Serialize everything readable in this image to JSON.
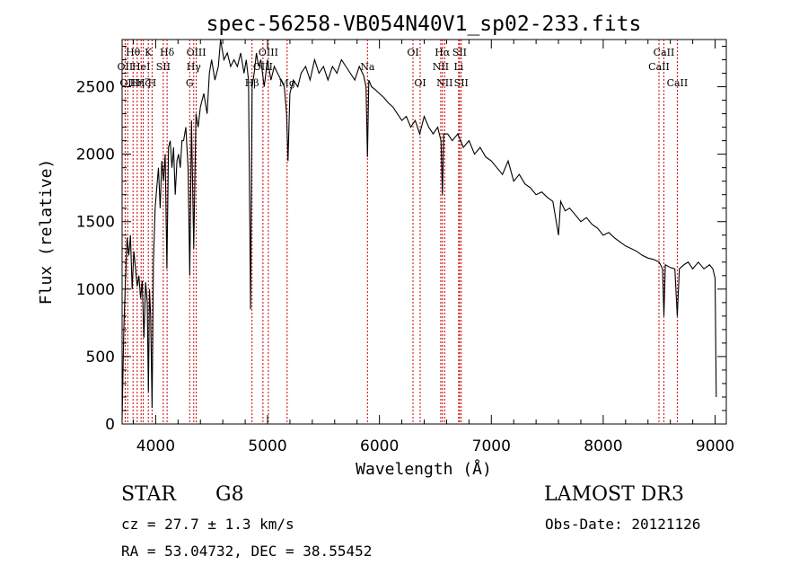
{
  "chart_data": {
    "type": "line",
    "title": "spec-56258-VB054N40V1_sp02-233.fits",
    "xlabel": "Wavelength (Å)",
    "ylabel": "Flux (relative)",
    "xlim": [
      3700,
      9100
    ],
    "ylim": [
      0,
      2850
    ],
    "xticks": [
      4000,
      5000,
      6000,
      7000,
      8000,
      9000
    ],
    "yticks": [
      0,
      500,
      1000,
      1500,
      2000,
      2500
    ],
    "series": [
      {
        "name": "flux",
        "color": "#000000",
        "points": [
          [
            3700,
            30
          ],
          [
            3715,
            700
          ],
          [
            3730,
            1050
          ],
          [
            3745,
            1380
          ],
          [
            3760,
            1250
          ],
          [
            3775,
            1400
          ],
          [
            3790,
            1000
          ],
          [
            3805,
            1280
          ],
          [
            3820,
            1150
          ],
          [
            3835,
            1020
          ],
          [
            3850,
            1100
          ],
          [
            3865,
            930
          ],
          [
            3880,
            1060
          ],
          [
            3895,
            640
          ],
          [
            3910,
            1050
          ],
          [
            3925,
            900
          ],
          [
            3935,
            240
          ],
          [
            3945,
            1000
          ],
          [
            3955,
            800
          ],
          [
            3968,
            120
          ],
          [
            3980,
            1200
          ],
          [
            3995,
            1600
          ],
          [
            4010,
            1750
          ],
          [
            4025,
            1900
          ],
          [
            4040,
            1600
          ],
          [
            4055,
            1950
          ],
          [
            4070,
            1800
          ],
          [
            4085,
            2000
          ],
          [
            4100,
            1150
          ],
          [
            4115,
            2050
          ],
          [
            4130,
            2100
          ],
          [
            4145,
            1900
          ],
          [
            4160,
            2050
          ],
          [
            4175,
            1700
          ],
          [
            4190,
            1950
          ],
          [
            4205,
            2000
          ],
          [
            4220,
            1900
          ],
          [
            4235,
            2100
          ],
          [
            4250,
            2100
          ],
          [
            4270,
            2200
          ],
          [
            4290,
            1900
          ],
          [
            4305,
            1100
          ],
          [
            4320,
            2250
          ],
          [
            4340,
            1300
          ],
          [
            4360,
            2300
          ],
          [
            4380,
            2200
          ],
          [
            4400,
            2350
          ],
          [
            4430,
            2450
          ],
          [
            4460,
            2300
          ],
          [
            4480,
            2600
          ],
          [
            4500,
            2700
          ],
          [
            4530,
            2550
          ],
          [
            4560,
            2650
          ],
          [
            4580,
            2850
          ],
          [
            4610,
            2700
          ],
          [
            4640,
            2750
          ],
          [
            4670,
            2650
          ],
          [
            4700,
            2700
          ],
          [
            4730,
            2650
          ],
          [
            4760,
            2750
          ],
          [
            4790,
            2600
          ],
          [
            4810,
            2700
          ],
          [
            4830,
            2550
          ],
          [
            4848,
            850
          ],
          [
            4862,
            2500
          ],
          [
            4880,
            2600
          ],
          [
            4900,
            2750
          ],
          [
            4920,
            2650
          ],
          [
            4940,
            2700
          ],
          [
            4970,
            2500
          ],
          [
            5000,
            2700
          ],
          [
            5030,
            2550
          ],
          [
            5060,
            2650
          ],
          [
            5090,
            2600
          ],
          [
            5120,
            2550
          ],
          [
            5150,
            2500
          ],
          [
            5170,
            2300
          ],
          [
            5183,
            1950
          ],
          [
            5200,
            2450
          ],
          [
            5230,
            2550
          ],
          [
            5270,
            2500
          ],
          [
            5300,
            2600
          ],
          [
            5340,
            2650
          ],
          [
            5380,
            2550
          ],
          [
            5420,
            2700
          ],
          [
            5460,
            2600
          ],
          [
            5500,
            2650
          ],
          [
            5540,
            2550
          ],
          [
            5580,
            2650
          ],
          [
            5620,
            2600
          ],
          [
            5660,
            2700
          ],
          [
            5700,
            2650
          ],
          [
            5740,
            2600
          ],
          [
            5780,
            2550
          ],
          [
            5820,
            2650
          ],
          [
            5860,
            2580
          ],
          [
            5880,
            2500
          ],
          [
            5893,
            1980
          ],
          [
            5905,
            2550
          ],
          [
            5930,
            2500
          ],
          [
            5960,
            2480
          ],
          [
            6000,
            2450
          ],
          [
            6040,
            2420
          ],
          [
            6080,
            2380
          ],
          [
            6120,
            2350
          ],
          [
            6160,
            2300
          ],
          [
            6200,
            2250
          ],
          [
            6240,
            2280
          ],
          [
            6280,
            2200
          ],
          [
            6320,
            2250
          ],
          [
            6360,
            2150
          ],
          [
            6400,
            2280
          ],
          [
            6440,
            2200
          ],
          [
            6480,
            2150
          ],
          [
            6520,
            2200
          ],
          [
            6550,
            2100
          ],
          [
            6563,
            1700
          ],
          [
            6575,
            2150
          ],
          [
            6610,
            2150
          ],
          [
            6650,
            2100
          ],
          [
            6700,
            2150
          ],
          [
            6750,
            2050
          ],
          [
            6800,
            2100
          ],
          [
            6850,
            2000
          ],
          [
            6900,
            2050
          ],
          [
            6950,
            1980
          ],
          [
            7000,
            1950
          ],
          [
            7050,
            1900
          ],
          [
            7100,
            1850
          ],
          [
            7150,
            1950
          ],
          [
            7200,
            1800
          ],
          [
            7250,
            1850
          ],
          [
            7300,
            1780
          ],
          [
            7350,
            1750
          ],
          [
            7400,
            1700
          ],
          [
            7450,
            1720
          ],
          [
            7500,
            1680
          ],
          [
            7550,
            1650
          ],
          [
            7600,
            1400
          ],
          [
            7620,
            1650
          ],
          [
            7660,
            1580
          ],
          [
            7700,
            1600
          ],
          [
            7750,
            1550
          ],
          [
            7800,
            1500
          ],
          [
            7850,
            1530
          ],
          [
            7900,
            1480
          ],
          [
            7950,
            1450
          ],
          [
            8000,
            1400
          ],
          [
            8050,
            1420
          ],
          [
            8100,
            1380
          ],
          [
            8150,
            1350
          ],
          [
            8200,
            1320
          ],
          [
            8250,
            1300
          ],
          [
            8300,
            1280
          ],
          [
            8350,
            1250
          ],
          [
            8400,
            1230
          ],
          [
            8450,
            1220
          ],
          [
            8500,
            1200
          ],
          [
            8530,
            1150
          ],
          [
            8542,
            800
          ],
          [
            8555,
            1180
          ],
          [
            8600,
            1160
          ],
          [
            8640,
            1150
          ],
          [
            8662,
            800
          ],
          [
            8680,
            1150
          ],
          [
            8720,
            1180
          ],
          [
            8760,
            1200
          ],
          [
            8800,
            1150
          ],
          [
            8850,
            1200
          ],
          [
            8900,
            1150
          ],
          [
            8950,
            1180
          ],
          [
            8980,
            1150
          ],
          [
            9000,
            1080
          ],
          [
            9010,
            200
          ]
        ]
      }
    ],
    "lines": [
      {
        "wavelength": 3727,
        "label": "OII",
        "row": 2
      },
      {
        "wavelength": 3750,
        "label": "OII",
        "row": 3
      },
      {
        "wavelength": 3798,
        "label": "Hθ",
        "row": 1
      },
      {
        "wavelength": 3835,
        "label": "Hη",
        "row": 3
      },
      {
        "wavelength": 3870,
        "label": "HeI",
        "row": 2
      },
      {
        "wavelength": 3889,
        "label": "Hζ",
        "row": 3
      },
      {
        "wavelength": 3934,
        "label": "K",
        "row": 1
      },
      {
        "wavelength": 3968,
        "label": "H",
        "row": 3
      },
      {
        "wavelength": 4068,
        "label": "SII",
        "row": 2
      },
      {
        "wavelength": 4102,
        "label": "Hδ",
        "row": 1
      },
      {
        "wavelength": 4304,
        "label": "G",
        "row": 3
      },
      {
        "wavelength": 4340,
        "label": "Hγ",
        "row": 2
      },
      {
        "wavelength": 4363,
        "label": "OIII",
        "row": 1
      },
      {
        "wavelength": 4861,
        "label": "Hβ",
        "row": 3
      },
      {
        "wavelength": 4959,
        "label": "OIII",
        "row": 2
      },
      {
        "wavelength": 5007,
        "label": "OIII",
        "row": 1
      },
      {
        "wavelength": 5175,
        "label": "Mg",
        "row": 3
      },
      {
        "wavelength": 5893,
        "label": "Na",
        "row": 2
      },
      {
        "wavelength": 6300,
        "label": "OI",
        "row": 1
      },
      {
        "wavelength": 6364,
        "label": "OI",
        "row": 3
      },
      {
        "wavelength": 6548,
        "label": "NII",
        "row": 2
      },
      {
        "wavelength": 6563,
        "label": "Hα",
        "row": 1
      },
      {
        "wavelength": 6583,
        "label": "NII",
        "row": 3
      },
      {
        "wavelength": 6708,
        "label": "Li",
        "row": 2
      },
      {
        "wavelength": 6716,
        "label": "SII",
        "row": 1
      },
      {
        "wavelength": 6731,
        "label": "SII",
        "row": 3
      },
      {
        "wavelength": 8498,
        "label": "CaII",
        "row": 2
      },
      {
        "wavelength": 8542,
        "label": "CaII",
        "row": 1
      },
      {
        "wavelength": 8662,
        "label": "CaII",
        "row": 3
      }
    ]
  },
  "info": {
    "object_class": "STAR",
    "subclass": "G8",
    "survey": "LAMOST DR3",
    "redshift": "cz = 27.7 ± 1.3 km/s",
    "obs_date": "Obs-Date: 20121126",
    "coords": "RA =  53.04732, DEC =  38.55452"
  },
  "colors": {
    "spectrum": "#000000",
    "line_markers": "#cc0000",
    "axes": "#000000"
  }
}
